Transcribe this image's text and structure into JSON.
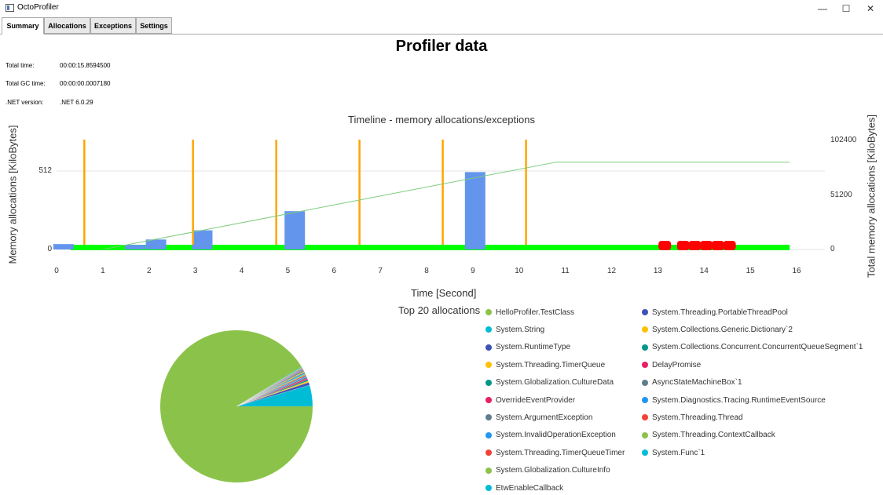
{
  "window": {
    "title": "OctoProfiler",
    "minimize": "—",
    "maximize": "☐",
    "close": "✕"
  },
  "tabs": [
    {
      "label": "Summary",
      "active": true
    },
    {
      "label": "Allocations",
      "active": false
    },
    {
      "label": "Exceptions",
      "active": false
    },
    {
      "label": "Settings",
      "active": false
    }
  ],
  "page": {
    "title": "Profiler data"
  },
  "info": [
    {
      "label": "Total time:",
      "value": "00:00:15.8594500"
    },
    {
      "label": "Total GC time:",
      "value": "00:00:00.0007180"
    },
    {
      "label": ".NET version:",
      "value": ".NET 6.0.29"
    }
  ],
  "chart_data": [
    {
      "type": "bar",
      "title": "Timeline - memory allocations/exceptions",
      "xlabel": "Time [Second]",
      "ylabel": "Memory allocations [KiloBytes]",
      "y2label": "Total memory allocations [KiloBytes]",
      "xlim": [
        0,
        16
      ],
      "ylim": [
        0,
        700
      ],
      "y2lim": [
        0,
        102400
      ],
      "xticks": [
        "0",
        "1",
        "2",
        "3",
        "4",
        "5",
        "6",
        "7",
        "8",
        "9",
        "10",
        "11",
        "12",
        "13",
        "14",
        "15",
        "16"
      ],
      "yticks": [
        "0",
        "512"
      ],
      "y2ticks": [
        "0",
        "51200",
        "102400"
      ],
      "grid": "horizontal",
      "colors": {
        "bars": "#6495ed",
        "cumulative": "#7ccd7c",
        "exceptions": "#ff0000",
        "gc": "#ffa500",
        "baseline": "#00ff00"
      },
      "allocation_bars": [
        {
          "x": 0.15,
          "value": 35
        },
        {
          "x": 1.7,
          "value": 30
        },
        {
          "x": 2.15,
          "value": 65
        },
        {
          "x": 3.15,
          "value": 125
        },
        {
          "x": 5.15,
          "value": 250
        },
        {
          "x": 9.05,
          "value": 505
        }
      ],
      "cumulative": [
        {
          "x": 1.0,
          "y": 0
        },
        {
          "x": 10.8,
          "y": 82000
        },
        {
          "x": 15.85,
          "y": 82000
        }
      ],
      "gc_events": [
        0.6,
        2.95,
        4.75,
        6.55,
        8.35,
        10.15
      ],
      "exceptions": [
        13.15,
        13.55,
        13.8,
        14.05,
        14.3,
        14.55
      ],
      "baseline": [
        0.3,
        15.85
      ]
    },
    {
      "type": "pie",
      "title": "Top 20 allocations",
      "slices": [
        {
          "label": "HelloProfiler.TestClass",
          "value": 91.0,
          "color": "#8bc34a"
        },
        {
          "label": "System.String",
          "value": 4.5,
          "color": "#00bcd4"
        },
        {
          "label": "System.RuntimeType",
          "value": 0.6,
          "color": "#3f51b5"
        },
        {
          "label": "System.Threading.TimerQueue",
          "value": 0.3,
          "color": "#ffc107"
        },
        {
          "label": "System.Globalization.CultureData",
          "value": 0.3,
          "color": "#009688"
        },
        {
          "label": "OverrideEventProvider",
          "value": 0.3,
          "color": "#e91e63"
        },
        {
          "label": "System.ArgumentException",
          "value": 0.3,
          "color": "#607d8b"
        },
        {
          "label": "System.InvalidOperationException",
          "value": 0.25,
          "color": "#2196f3"
        },
        {
          "label": "System.Threading.TimerQueueTimer",
          "value": 0.25,
          "color": "#f44336"
        },
        {
          "label": "System.Globalization.CultureInfo",
          "value": 0.2,
          "color": "#8bc34a"
        },
        {
          "label": "EtwEnableCallback",
          "value": 0.2,
          "color": "#00bcd4"
        },
        {
          "label": "System.Threading.PortableThreadPool",
          "value": 0.2,
          "color": "#3f51b5"
        },
        {
          "label": "System.Collections.Generic.Dictionary`2",
          "value": 0.2,
          "color": "#ffc107"
        },
        {
          "label": "System.Collections.Concurrent.ConcurrentQueueSegment`1",
          "value": 0.2,
          "color": "#009688"
        },
        {
          "label": "DelayPromise",
          "value": 0.15,
          "color": "#e91e63"
        },
        {
          "label": "AsyncStateMachineBox`1",
          "value": 0.15,
          "color": "#607d8b"
        },
        {
          "label": "System.Diagnostics.Tracing.RuntimeEventSource",
          "value": 0.15,
          "color": "#2196f3"
        },
        {
          "label": "System.Threading.Thread",
          "value": 0.15,
          "color": "#f44336"
        },
        {
          "label": "System.Threading.ContextCallback",
          "value": 0.15,
          "color": "#8bc34a"
        },
        {
          "label": "System.Func`1",
          "value": 0.15,
          "color": "#00bcd4"
        }
      ]
    }
  ]
}
